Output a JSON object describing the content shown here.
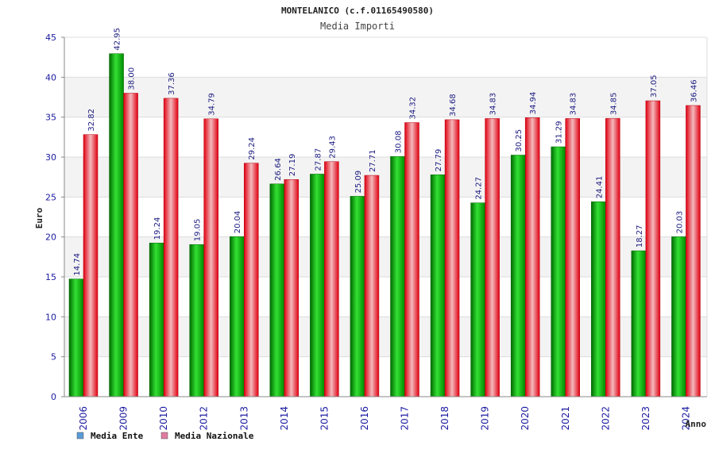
{
  "chart_data": {
    "type": "bar",
    "title": "MONTELANICO (c.f.01165490580)",
    "subtitle": "Media Importi",
    "ylabel": "Euro",
    "xlabel": "Anno",
    "ylim": [
      0,
      45
    ],
    "yticks": [
      0,
      5,
      10,
      15,
      20,
      25,
      30,
      35,
      40,
      45
    ],
    "grid": true,
    "legend_position": "bottom-left",
    "categories": [
      "2006",
      "2009",
      "2010",
      "2012",
      "2013",
      "2014",
      "2015",
      "2016",
      "2017",
      "2018",
      "2019",
      "2020",
      "2021",
      "2022",
      "2023",
      "2024"
    ],
    "series": [
      {
        "name": "Media Ente",
        "color": "#00b400",
        "legend_color": "#5b9bd5",
        "values": [
          14.74,
          42.95,
          19.24,
          19.05,
          20.04,
          26.64,
          27.87,
          25.09,
          30.08,
          27.79,
          24.27,
          30.25,
          31.29,
          24.41,
          18.27,
          20.03
        ],
        "labels": [
          "14.74",
          "42.95",
          "19.24",
          "19.05",
          "20.04",
          "26.64",
          "27.87",
          "25.09",
          "30.08",
          "27.79",
          "24.27",
          "30.25",
          "31.29",
          "24.41",
          "18.27",
          "20.03"
        ]
      },
      {
        "name": "Media Nazionale",
        "color": "#e8202a",
        "legend_color": "#e07aa0",
        "values": [
          32.82,
          38.0,
          37.36,
          34.79,
          29.24,
          27.19,
          29.43,
          27.71,
          34.32,
          34.68,
          34.83,
          34.94,
          34.83,
          34.85,
          37.05,
          36.46
        ],
        "labels": [
          "32.82",
          "38.00",
          "37.36",
          "34.79",
          "29.24",
          "27.19",
          "29.43",
          "27.71",
          "34.32",
          "34.68",
          "34.83",
          "34.94",
          "34.83",
          "34.85",
          "37.05",
          "36.46"
        ]
      }
    ]
  }
}
